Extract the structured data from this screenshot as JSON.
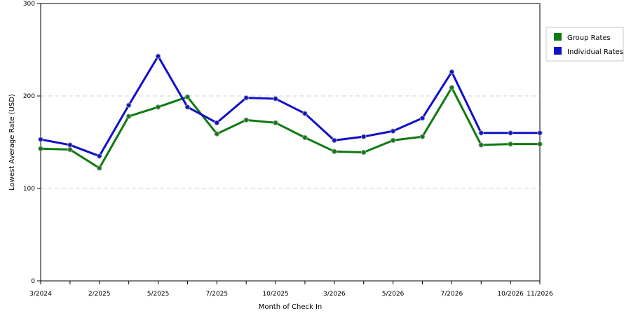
{
  "chart_data": {
    "type": "line",
    "categories": [
      "3/2024",
      "",
      "2/2025",
      "",
      "5/2025",
      "",
      "7/2025",
      "",
      "10/2025",
      "",
      "3/2026",
      "",
      "5/2026",
      "",
      "7/2026",
      "",
      "10/2026",
      "11/2026"
    ],
    "series": [
      {
        "name": "Group Rates",
        "color": "#0f7a0f",
        "values": [
          143,
          142,
          122,
          178,
          188,
          199,
          159,
          174,
          171,
          155,
          140,
          139,
          152,
          156,
          209,
          147,
          148,
          148
        ]
      },
      {
        "name": "Individual Rates",
        "color": "#1010c8",
        "values": [
          153,
          147,
          135,
          190,
          243,
          188,
          171,
          198,
          197,
          181,
          152,
          156,
          162,
          176,
          226,
          160,
          160,
          160
        ]
      }
    ],
    "xlabel": "Month of Check In",
    "ylabel": "Lowest Average Rate (USD)",
    "ylim": [
      0,
      300
    ],
    "yticks": [
      0,
      100,
      200,
      300
    ],
    "grid": true,
    "legend_position": "right"
  }
}
